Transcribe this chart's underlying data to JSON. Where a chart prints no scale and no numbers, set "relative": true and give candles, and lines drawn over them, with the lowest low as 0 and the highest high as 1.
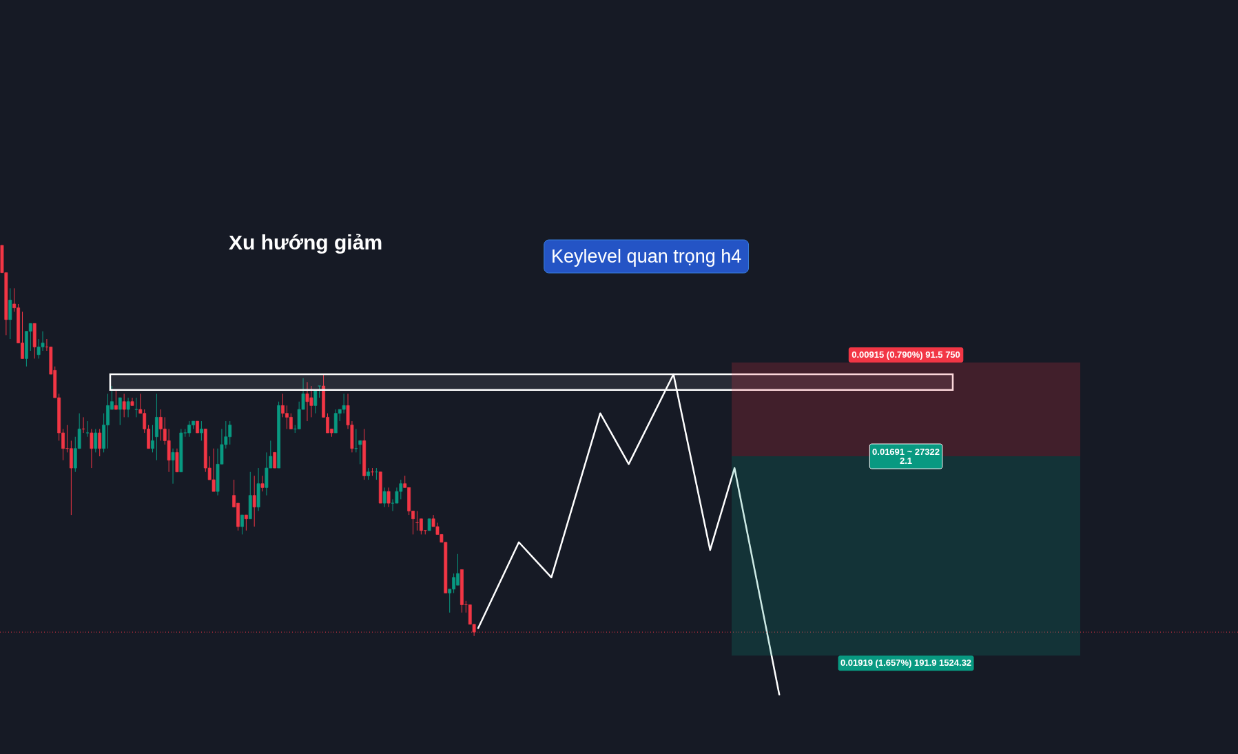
{
  "chart_data": {
    "type": "candlestick",
    "relative": true,
    "categories": [
      null,
      null,
      null,
      null,
      null,
      null,
      null,
      null,
      null,
      null,
      null,
      null,
      null,
      null,
      null,
      null,
      null,
      null,
      null,
      null,
      null,
      null,
      null,
      null,
      null,
      null,
      null,
      null,
      null,
      null,
      null,
      null,
      null,
      null,
      null,
      null,
      null,
      null,
      null,
      null,
      null,
      null,
      null,
      null,
      null,
      null,
      null,
      null,
      null,
      null,
      null,
      null,
      null,
      null,
      null,
      null,
      null,
      null,
      null,
      null,
      null,
      null,
      null,
      null,
      null,
      null,
      null,
      null,
      null,
      null,
      null,
      null,
      null,
      null,
      null,
      null,
      null,
      null,
      null,
      null,
      null,
      null,
      null,
      null,
      null,
      null,
      null,
      null,
      null,
      null,
      null,
      null,
      null,
      null,
      null,
      null,
      null,
      null,
      null,
      null,
      null,
      null,
      null,
      null,
      null,
      null,
      null,
      null,
      null,
      null,
      null,
      null,
      null,
      null,
      null,
      null,
      null,
      null,
      null,
      null,
      null,
      null,
      null,
      null,
      null,
      null,
      null,
      null,
      null,
      null,
      null,
      null,
      null,
      null,
      null,
      null,
      null,
      null,
      null,
      null,
      null,
      null,
      null,
      null,
      null,
      null,
      null,
      null,
      null,
      null,
      null,
      null,
      null,
      null,
      null,
      null,
      null,
      null,
      null,
      null,
      null,
      null,
      null,
      null,
      null,
      null,
      null,
      null,
      null,
      null,
      null,
      null,
      null,
      null,
      null,
      null,
      null,
      null,
      null,
      null,
      null,
      null,
      null,
      null,
      null,
      null,
      null,
      null,
      null,
      null,
      null,
      null
    ],
    "ohlc": [
      [
        1.0,
        1.0,
        0.93,
        0.93
      ],
      [
        0.93,
        0.93,
        0.77,
        0.81
      ],
      [
        0.81,
        0.89,
        0.76,
        0.86
      ],
      [
        0.85,
        0.89,
        0.83,
        0.84
      ],
      [
        0.84,
        0.85,
        0.75,
        0.75
      ],
      [
        0.75,
        0.83,
        0.71,
        0.71
      ],
      [
        0.71,
        0.78,
        0.69,
        0.78
      ],
      [
        0.78,
        0.8,
        0.73,
        0.8
      ],
      [
        0.8,
        0.8,
        0.71,
        0.74
      ],
      [
        0.72,
        0.76,
        0.71,
        0.74
      ],
      [
        0.74,
        0.78,
        0.73,
        0.75
      ],
      [
        0.74,
        0.76,
        0.73,
        0.74
      ],
      [
        0.74,
        0.74,
        0.67,
        0.67
      ],
      [
        0.68,
        0.69,
        0.61,
        0.61
      ],
      [
        0.61,
        0.62,
        0.5,
        0.52
      ],
      [
        0.52,
        0.53,
        0.45,
        0.48
      ],
      [
        0.48,
        0.54,
        0.47,
        0.48
      ],
      [
        0.48,
        0.5,
        0.31,
        0.43
      ],
      [
        0.43,
        0.51,
        0.42,
        0.48
      ],
      [
        0.48,
        0.57,
        0.48,
        0.53
      ],
      [
        0.53,
        0.56,
        0.52,
        0.53
      ],
      [
        0.52,
        0.55,
        0.51,
        0.52
      ],
      [
        0.52,
        0.53,
        0.43,
        0.48
      ],
      [
        0.48,
        0.53,
        0.47,
        0.52
      ],
      [
        0.52,
        0.53,
        0.46,
        0.48
      ],
      [
        0.48,
        0.57,
        0.47,
        0.54
      ],
      [
        0.54,
        0.62,
        0.48,
        0.59
      ],
      [
        0.58,
        0.64,
        0.58,
        0.6
      ],
      [
        0.59,
        0.63,
        0.58,
        0.58
      ],
      [
        0.58,
        0.61,
        0.54,
        0.61
      ],
      [
        0.6,
        0.62,
        0.56,
        0.58
      ],
      [
        0.58,
        0.61,
        0.56,
        0.6
      ],
      [
        0.6,
        0.61,
        0.59,
        0.59
      ],
      [
        0.58,
        0.61,
        0.56,
        0.58
      ],
      [
        0.58,
        0.62,
        0.57,
        0.57
      ],
      [
        0.57,
        0.58,
        0.52,
        0.53
      ],
      [
        0.53,
        0.54,
        0.48,
        0.48
      ],
      [
        0.48,
        0.54,
        0.47,
        0.5
      ],
      [
        0.51,
        0.62,
        0.45,
        0.56
      ],
      [
        0.56,
        0.58,
        0.5,
        0.53
      ],
      [
        0.53,
        0.56,
        0.49,
        0.5
      ],
      [
        0.5,
        0.53,
        0.42,
        0.45
      ],
      [
        0.45,
        0.48,
        0.39,
        0.47
      ],
      [
        0.47,
        0.48,
        0.42,
        0.42
      ],
      [
        0.42,
        0.53,
        0.42,
        0.52
      ],
      [
        0.52,
        0.53,
        0.51,
        0.52
      ],
      [
        0.52,
        0.55,
        0.51,
        0.54
      ],
      [
        0.54,
        0.55,
        0.53,
        0.55
      ],
      [
        0.55,
        0.55,
        0.52,
        0.52
      ],
      [
        0.52,
        0.55,
        0.5,
        0.53
      ],
      [
        0.53,
        0.53,
        0.42,
        0.43
      ],
      [
        0.43,
        0.46,
        0.4,
        0.4
      ],
      [
        0.4,
        0.48,
        0.37,
        0.37
      ],
      [
        0.37,
        0.48,
        0.36,
        0.44
      ],
      [
        0.44,
        0.53,
        0.44,
        0.49
      ],
      [
        0.49,
        0.55,
        0.48,
        0.51
      ],
      [
        0.51,
        0.55,
        0.49,
        0.54
      ],
      [
        0.36,
        0.4,
        0.33,
        0.33
      ],
      [
        0.34,
        0.34,
        0.27,
        0.28
      ],
      [
        0.28,
        0.31,
        0.26,
        0.31
      ],
      [
        0.31,
        0.31,
        0.27,
        0.3
      ],
      [
        0.3,
        0.42,
        0.3,
        0.36
      ],
      [
        0.36,
        0.41,
        0.28,
        0.33
      ],
      [
        0.33,
        0.43,
        0.32,
        0.39
      ],
      [
        0.39,
        0.41,
        0.37,
        0.38
      ],
      [
        0.38,
        0.47,
        0.36,
        0.43
      ],
      [
        0.43,
        0.5,
        0.43,
        0.46
      ],
      [
        0.47,
        0.47,
        0.43,
        0.43
      ],
      [
        0.43,
        0.6,
        0.43,
        0.59
      ],
      [
        0.59,
        0.62,
        0.56,
        0.57
      ],
      [
        0.57,
        0.59,
        0.53,
        0.56
      ],
      [
        0.56,
        0.57,
        0.53,
        0.53
      ],
      [
        0.53,
        0.54,
        0.52,
        0.53
      ],
      [
        0.53,
        0.6,
        0.53,
        0.58
      ],
      [
        0.58,
        0.66,
        0.58,
        0.62
      ],
      [
        0.62,
        0.65,
        0.55,
        0.6
      ],
      [
        0.61,
        0.64,
        0.56,
        0.59
      ],
      [
        0.59,
        0.63,
        0.57,
        0.63
      ],
      [
        0.64,
        0.64,
        0.61,
        0.64
      ],
      [
        0.64,
        0.67,
        0.56,
        0.56
      ],
      [
        0.56,
        0.57,
        0.52,
        0.52
      ],
      [
        0.53,
        0.53,
        0.51,
        0.52
      ],
      [
        0.52,
        0.58,
        0.52,
        0.57
      ],
      [
        0.57,
        0.58,
        0.55,
        0.58
      ],
      [
        0.58,
        0.62,
        0.57,
        0.59
      ],
      [
        0.59,
        0.62,
        0.53,
        0.54
      ],
      [
        0.54,
        0.55,
        0.47,
        0.48
      ],
      [
        0.48,
        0.53,
        0.47,
        0.48
      ],
      [
        0.49,
        0.5,
        0.44,
        0.5
      ],
      [
        0.5,
        0.53,
        0.4,
        0.41
      ],
      [
        0.41,
        0.43,
        0.4,
        0.42
      ],
      [
        0.42,
        0.43,
        0.41,
        0.42
      ],
      [
        0.42,
        0.43,
        0.4,
        0.42
      ],
      [
        0.42,
        0.42,
        0.34,
        0.34
      ],
      [
        0.34,
        0.38,
        0.33,
        0.37
      ],
      [
        0.37,
        0.38,
        0.33,
        0.34
      ],
      [
        0.34,
        0.35,
        0.32,
        0.34
      ],
      [
        0.34,
        0.38,
        0.34,
        0.37
      ],
      [
        0.37,
        0.4,
        0.35,
        0.39
      ],
      [
        0.39,
        0.41,
        0.38,
        0.38
      ],
      [
        0.38,
        0.38,
        0.31,
        0.32
      ],
      [
        0.32,
        0.32,
        0.26,
        0.3
      ],
      [
        0.29,
        0.32,
        0.27,
        0.29
      ],
      [
        0.3,
        0.3,
        0.26,
        0.27
      ],
      [
        0.27,
        0.27,
        0.26,
        0.27
      ],
      [
        0.27,
        0.3,
        0.27,
        0.3
      ],
      [
        0.3,
        0.31,
        0.28,
        0.28
      ],
      [
        0.28,
        0.29,
        0.26,
        0.26
      ],
      [
        0.26,
        0.26,
        0.24,
        0.24
      ],
      [
        0.24,
        0.24,
        0.11,
        0.11
      ],
      [
        0.11,
        0.12,
        0.06,
        0.12
      ],
      [
        0.12,
        0.16,
        0.11,
        0.15
      ],
      [
        0.13,
        0.21,
        0.13,
        0.16
      ],
      [
        0.17,
        0.17,
        0.06,
        0.08
      ],
      [
        0.08,
        0.09,
        0.06,
        0.08
      ],
      [
        0.08,
        0.08,
        0.03,
        0.03
      ],
      [
        0.03,
        0.03,
        0.0,
        0.01
      ],
      null,
      null,
      null,
      null,
      null,
      null,
      null,
      null,
      null,
      null,
      null,
      null,
      null,
      null,
      null,
      null,
      null,
      null,
      null,
      null,
      null,
      null,
      null,
      null,
      null,
      null,
      null,
      null,
      null,
      null,
      null,
      null,
      null,
      null,
      null,
      null,
      null,
      null,
      null,
      null,
      null,
      null,
      null,
      null,
      null,
      null,
      null,
      null,
      null,
      null,
      null,
      null,
      null,
      null,
      null,
      null,
      null,
      null,
      null,
      null,
      null,
      null,
      null,
      null,
      null,
      null,
      null,
      null,
      null,
      null,
      null,
      null,
      null,
      null,
      null
    ],
    "colors": [
      "#f23645",
      "#f23645",
      "#089981",
      "#f23645",
      "#f23645",
      "#f23645",
      "#089981",
      "#089981",
      "#f23645",
      "#089981",
      "#089981",
      "#f23645",
      "#f23645",
      "#f23645",
      "#f23645",
      "#f23645",
      "#f23645",
      "#f23645",
      "#089981",
      "#089981",
      "#f23645",
      "#089981",
      "#f23645",
      "#089981",
      "#f23645",
      "#089981",
      "#089981",
      "#089981",
      "#f23645",
      "#089981",
      "#f23645",
      "#089981",
      "#f23645",
      "#089981",
      "#f23645",
      "#f23645",
      "#f23645",
      "#089981",
      "#089981",
      "#f23645",
      "#f23645",
      "#f23645",
      "#089981",
      "#f23645",
      "#089981",
      "#089981",
      "#089981",
      "#089981",
      "#f23645",
      "#089981",
      "#f23645",
      "#f23645",
      "#f23645",
      "#089981",
      "#089981",
      "#089981",
      "#089981",
      "#f23645",
      "#f23645",
      "#089981",
      "#f23645",
      "#089981",
      "#f23645",
      "#089981",
      "#f23645",
      "#089981",
      "#089981",
      "#f23645",
      "#089981",
      "#f23645",
      "#f23645",
      "#f23645",
      "#089981",
      "#089981",
      "#089981",
      "#f23645",
      "#f23645",
      "#089981",
      "#089981",
      "#f23645",
      "#f23645",
      "#f23645",
      "#089981",
      "#089981",
      "#089981",
      "#f23645",
      "#f23645",
      "#089981",
      "#089981",
      "#f23645",
      "#089981",
      "#f23645",
      "#089981",
      "#f23645",
      "#089981",
      "#f23645",
      "#089981",
      "#089981",
      "#089981",
      "#f23645",
      "#f23645",
      "#f23645",
      "#f23645",
      "#f23645",
      "#f23645",
      "#089981",
      "#f23645",
      "#f23645",
      "#f23645",
      "#f23645",
      "#089981",
      "#089981",
      "#089981",
      "#f23645",
      "#f23645",
      "#f23645",
      "#f23645",
      null,
      null,
      null,
      null,
      null,
      null,
      null,
      null,
      null,
      null,
      null,
      null,
      null,
      null,
      null,
      null,
      null,
      null,
      null,
      null,
      null,
      null,
      null,
      null,
      null,
      null,
      null,
      null,
      null,
      null,
      null,
      null,
      null,
      null,
      null,
      null,
      null,
      null,
      null,
      null,
      null,
      null,
      null,
      null,
      null,
      null,
      null,
      null,
      null,
      null,
      null,
      null,
      null,
      null,
      null,
      null,
      null,
      null,
      null,
      null,
      null,
      null,
      null,
      null,
      null,
      null,
      null,
      null,
      null,
      null,
      null,
      null,
      null,
      null,
      null
    ],
    "series": [
      {
        "type": "line",
        "color": "#ffffff",
        "values": [
          null,
          null,
          null,
          null,
          null,
          null,
          null,
          null,
          null,
          null,
          null,
          null,
          null,
          null,
          null,
          null,
          null,
          null,
          null,
          null,
          null,
          null,
          null,
          null,
          null,
          null,
          null,
          null,
          null,
          null,
          null,
          null,
          null,
          null,
          null,
          null,
          null,
          null,
          null,
          null,
          null,
          null,
          null,
          null,
          null,
          null,
          null,
          null,
          null,
          null,
          null,
          null,
          null,
          null,
          null,
          null,
          null,
          null,
          null,
          null,
          null,
          null,
          null,
          null,
          null,
          null,
          null,
          null,
          null,
          null,
          null,
          null,
          null,
          null,
          null,
          null,
          null,
          null,
          null,
          null,
          null,
          null,
          null,
          null,
          null,
          null,
          null,
          null,
          null,
          null,
          null,
          null,
          null,
          null,
          null,
          null,
          null,
          null,
          null,
          null,
          null,
          null,
          null,
          null,
          null,
          null,
          null,
          null,
          null,
          null,
          null,
          null,
          null,
          null,
          null,
          null,
          null,
          0.02,
          null,
          null,
          null,
          null,
          null,
          null,
          null,
          null,
          null,
          0.24,
          null,
          null,
          null,
          null,
          null,
          null,
          null,
          0.15,
          null,
          null,
          null,
          null,
          null,
          null,
          null,
          null,
          null,
          null,
          null,
          0.57,
          null,
          null,
          null,
          null,
          null,
          null,
          0.44,
          null,
          null,
          null,
          null,
          null,
          null,
          null,
          null,
          null,
          null,
          0.67,
          null,
          null,
          null,
          null,
          null,
          null,
          null,
          null,
          0.22,
          null,
          null,
          null,
          null,
          null,
          0.43,
          null,
          null,
          null,
          null,
          null,
          null,
          null,
          null,
          null,
          null,
          -0.15
        ]
      }
    ],
    "bands": [
      {
        "axis": "y",
        "from": 0.63,
        "to": 0.67,
        "label": "Keylevel quan trọng h4",
        "color": "#ffffff"
      },
      {
        "axis": "y",
        "from": 0.46,
        "to": 0.7,
        "label": "0.00915 (0.790%) 91.5 750",
        "color": "#f23645"
      },
      {
        "axis": "y",
        "from": -0.05,
        "to": 0.46,
        "label": "0.01919 (1.657%) 191.9 1524.32",
        "color": "#089981"
      }
    ],
    "ref_lines": [
      {
        "axis": "y",
        "value": 0.01,
        "color": "#f23645",
        "line_style": "dotted"
      }
    ],
    "annotations": [
      "Xu hướng giảm",
      {
        "text": "0.01691 ~ 27322\n2.1",
        "y": 0.46
      }
    ]
  }
}
